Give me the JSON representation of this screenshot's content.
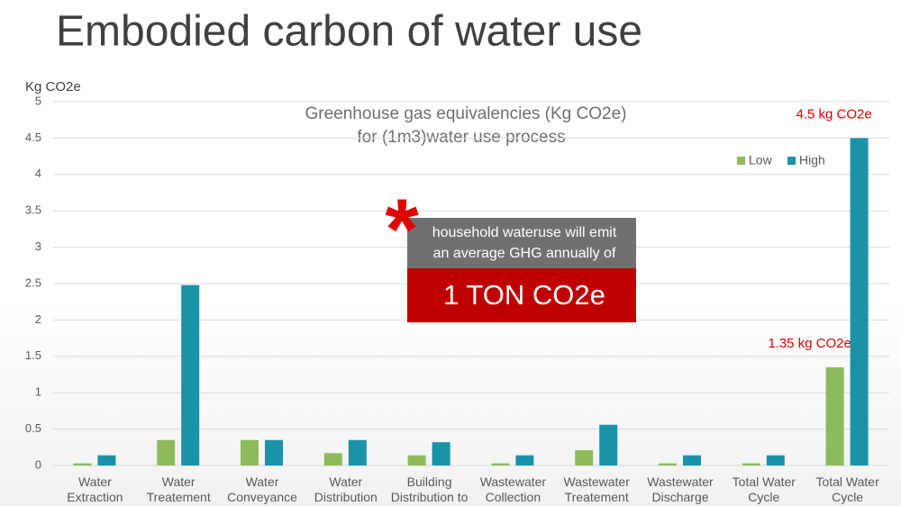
{
  "title": "Embodied carbon of water use",
  "chart_data": {
    "type": "bar",
    "title": "Greenhouse gas equivalencies (Kg CO2e)",
    "subtitle": "for (1m3)water use process",
    "y_label": "Kg CO2e",
    "categories": [
      "Water Extraction",
      "Water Treatement",
      "Water Conveyance",
      "Water Distribution",
      "Building Distribution to",
      "Wastewater Collection",
      "Wastewater Treatement",
      "Wastewater Discharge",
      "Total Water Cycle",
      "Total Water Cycle"
    ],
    "series": [
      {
        "name": "Low",
        "color": "#8cbb5c",
        "values": [
          0.03,
          0.35,
          0.35,
          0.17,
          0.14,
          0.03,
          0.21,
          0.03,
          0.03,
          1.35
        ],
        "value_labels": [
          null,
          null,
          null,
          null,
          null,
          null,
          null,
          null,
          null,
          "1.35 kg CO2e"
        ]
      },
      {
        "name": "High",
        "color": "#1a92a8",
        "values": [
          0.14,
          2.48,
          0.35,
          0.35,
          0.32,
          0.14,
          0.56,
          0.14,
          0.14,
          4.5
        ],
        "value_labels": [
          null,
          null,
          null,
          null,
          null,
          null,
          null,
          null,
          null,
          "4.5 kg CO2e"
        ]
      }
    ],
    "ylim": [
      0,
      5
    ],
    "yticks": [
      0,
      0.5,
      1,
      1.5,
      2,
      2.5,
      3,
      3.5,
      4,
      4.5,
      5
    ],
    "grid": true,
    "legend": "top-right",
    "callout": {
      "asterisk": "*",
      "lines": [
        "household wateruse will emit",
        "an average GHG annually  of"
      ],
      "highlight": "1 TON CO2e"
    }
  }
}
